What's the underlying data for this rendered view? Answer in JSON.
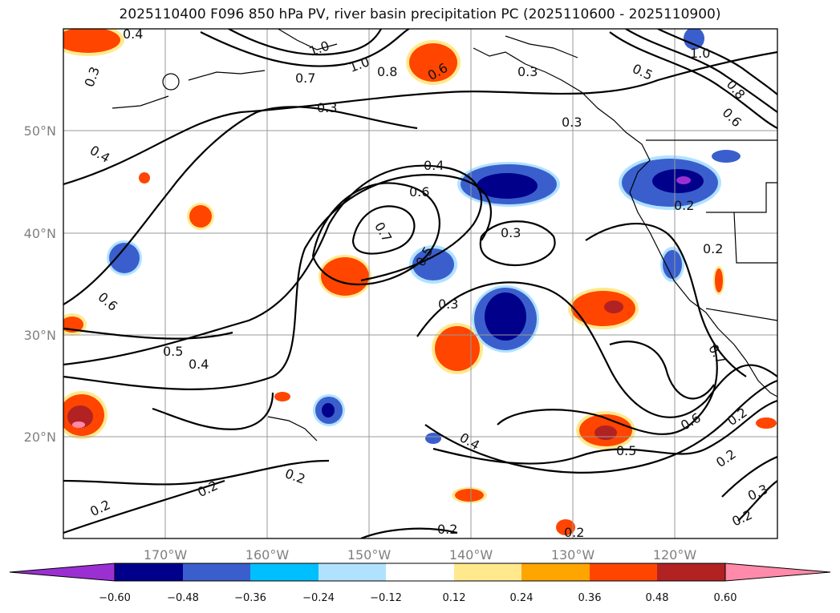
{
  "title": "2025110400 F096 850 hPa PV, river basin precipitation PC (2025110600 - 2025110900)",
  "map": {
    "lon_labels": [
      "170°W",
      "160°W",
      "150°W",
      "140°W",
      "130°W",
      "120°W"
    ],
    "lat_labels": [
      "50°N",
      "40°N",
      "30°N",
      "20°N"
    ]
  },
  "contour_labels": [
    "0.4",
    "0.3",
    "1.0",
    "1.0",
    "0.8",
    "0.6",
    "0.7",
    "0.3",
    "0.5",
    "0.8",
    "0.6",
    "1.0",
    "0.3",
    "0.4",
    "0.4",
    "0.6",
    "0.7",
    "0.5",
    "0.3",
    "0.3",
    "0.3",
    "0.2",
    "0.2",
    "0.6",
    "0.5",
    "0.4",
    "0.7",
    "0.6",
    "0.5",
    "0.4",
    "0.2",
    "0.2",
    "0.2",
    "0.2",
    "0.2",
    "0.2",
    "0.3",
    "0.2",
    "0.2"
  ],
  "colorbar": {
    "ticks": [
      "−0.60",
      "−0.48",
      "−0.36",
      "−0.24",
      "−0.12",
      "0.12",
      "0.24",
      "0.36",
      "0.48",
      "0.60"
    ],
    "colors": [
      "#9b30d2",
      "#00008b",
      "#3a5fcd",
      "#00bfff",
      "#b0e2ff",
      "#ffffff",
      "#ffe98c",
      "#ffa500",
      "#ff4500",
      "#b22222",
      "#ff8aaa"
    ]
  },
  "colors": {
    "frame": "#000000",
    "grid": "#999999",
    "contour": "#000000",
    "tick_label": "#808080"
  }
}
